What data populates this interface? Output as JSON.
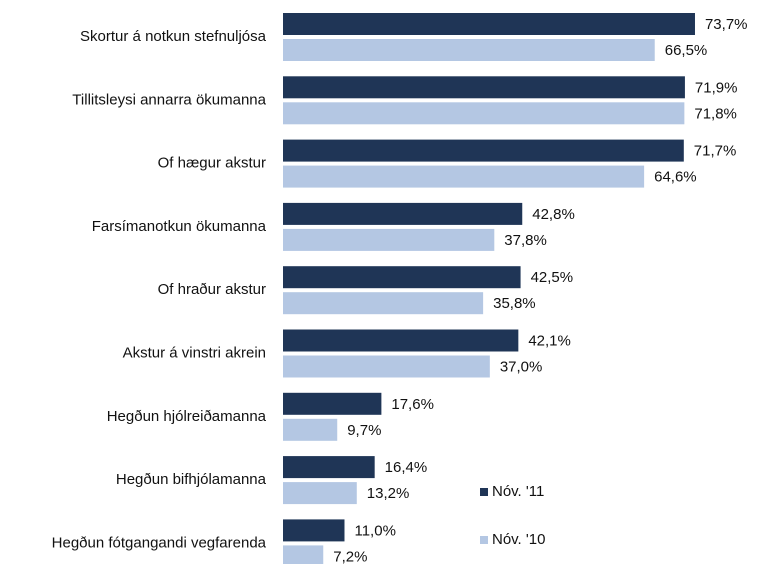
{
  "chart_data": {
    "type": "bar",
    "orientation": "horizontal",
    "categories": [
      "Skortur á notkun stefnuljósa",
      "Tillitsleysi annarra ökumanna",
      "Of hægur akstur",
      "Farsímanotkun ökumanna",
      "Of hraður akstur",
      "Akstur á vinstri akrein",
      "Hegðun hjólreiðamanna",
      "Hegðun bifhjólamanna",
      "Hegðun fótgangandi vegfarenda"
    ],
    "series": [
      {
        "name": "Nóv. '11",
        "color": "#1f3556",
        "values": [
          73.7,
          71.9,
          71.7,
          42.8,
          42.5,
          42.1,
          17.6,
          16.4,
          11.0
        ],
        "value_labels": [
          "73,7%",
          "71,9%",
          "71,7%",
          "42,8%",
          "42,5%",
          "42,1%",
          "17,6%",
          "16,4%",
          "11,0%"
        ]
      },
      {
        "name": "Nóv. '10",
        "color": "#b4c7e3",
        "values": [
          66.5,
          71.8,
          64.6,
          37.8,
          35.8,
          37.0,
          9.7,
          13.2,
          7.2
        ],
        "value_labels": [
          "66,5%",
          "71,8%",
          "64,6%",
          "37,8%",
          "35,8%",
          "37,0%",
          "9,7%",
          "13,2%",
          "7,2%"
        ]
      }
    ]
  }
}
